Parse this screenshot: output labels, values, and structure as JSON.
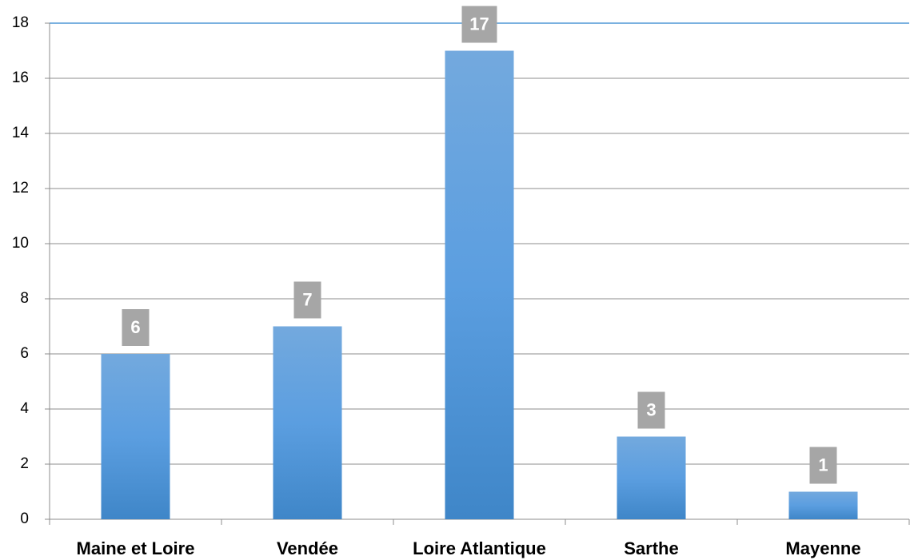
{
  "chart_data": {
    "type": "bar",
    "categories": [
      "Maine et Loire",
      "Vendée",
      "Loire Atlantique",
      "Sarthe",
      "Mayenne"
    ],
    "values": [
      6,
      7,
      17,
      3,
      1
    ],
    "color": "#5b9bd5",
    "ylim": [
      0,
      18
    ],
    "yticks": [
      0,
      2,
      4,
      6,
      8,
      10,
      12,
      14,
      16,
      18
    ],
    "grid": true
  }
}
